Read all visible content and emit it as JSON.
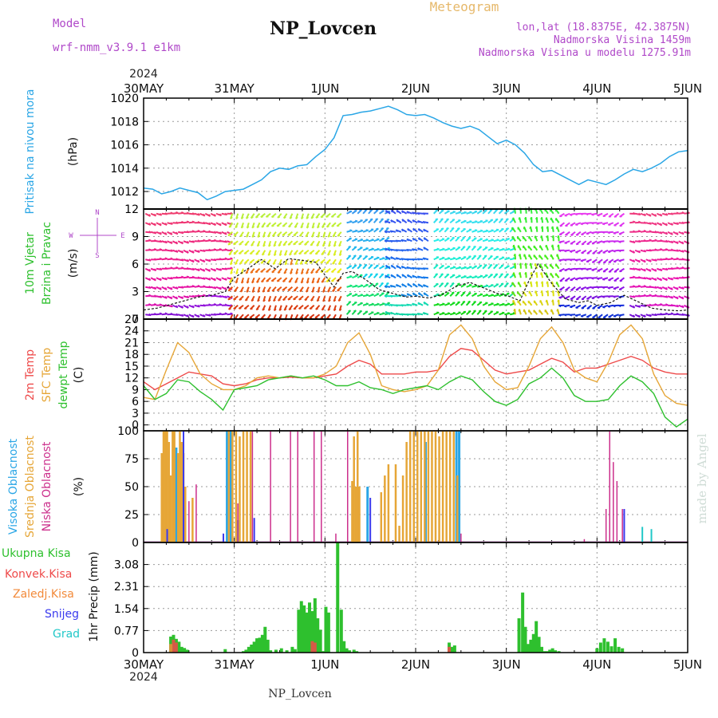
{
  "header": {
    "model_label": "Model",
    "model_value": "wrf-nmm_v3.9.1 e1km",
    "station": "NP_Lovcen",
    "meteogram_label": "Meteogram",
    "lonlat": "lon,lat (18.8375E, 42.3875N)",
    "altitude": "Nadmorska Visina 1459m",
    "model_altitude": "Nadmorska Visina u modelu 1275.91m",
    "watermark": "made by Angel",
    "footer_station": "NP_Lovcen",
    "year_top": "2024",
    "year_bottom": "2024"
  },
  "colors": {
    "pressure": "#2aa6e6",
    "wind_speed": "#1a1a1a",
    "temp2m": "#ee4a4a",
    "sfc_temp": "#e6a637",
    "dewpt": "#2ec02e",
    "cloud_high": "#2aa6e6",
    "cloud_mid": "#e6a637",
    "cloud_low": "#cc2f8c",
    "precip_total": "#2ec02e",
    "precip_conv": "#ee4a4a",
    "precip_frz": "#f28a3a",
    "snow": "#3a3aee",
    "hail": "#22c8c8"
  },
  "chart_data": [
    {
      "type": "line",
      "title": "",
      "ylabel_series": "Pritisak na nivou mora",
      "ylabel_unit": "(hPa)",
      "ylim": [
        1010.5,
        1020
      ],
      "yticks": [
        "1012",
        "1014",
        "1016",
        "1018",
        "1020"
      ],
      "ytick_values": [
        1012,
        1014,
        1016,
        1018,
        1020
      ],
      "x_days": [
        0,
        0.1,
        0.2,
        0.3,
        0.4,
        0.5,
        0.6,
        0.7,
        0.8,
        0.9,
        1.0,
        1.1,
        1.2,
        1.3,
        1.4,
        1.5,
        1.6,
        1.7,
        1.8,
        1.9,
        2.0,
        2.1,
        2.2,
        2.3,
        2.4,
        2.5,
        2.6,
        2.7,
        2.8,
        2.9,
        3.0,
        3.1,
        3.2,
        3.3,
        3.4,
        3.5,
        3.6,
        3.7,
        3.8,
        3.9,
        4.0,
        4.1,
        4.2,
        4.3,
        4.4,
        4.5,
        4.6,
        4.7,
        4.8,
        4.9,
        5.0,
        5.1,
        5.2,
        5.3,
        5.4,
        5.5,
        5.6,
        5.7,
        5.8,
        5.9,
        6.0
      ],
      "series": [
        {
          "values": [
            1012.3,
            1012.2,
            1011.8,
            1012.0,
            1012.3,
            1012.1,
            1011.9,
            1011.3,
            1011.6,
            1012.0,
            1012.1,
            1012.2,
            1012.6,
            1013.0,
            1013.7,
            1014.0,
            1013.9,
            1014.2,
            1014.3,
            1015.0,
            1015.6,
            1016.6,
            1018.5,
            1018.6,
            1018.8,
            1018.9,
            1019.1,
            1019.3,
            1019.0,
            1018.6,
            1018.5,
            1018.6,
            1018.3,
            1017.9,
            1017.6,
            1017.4,
            1017.6,
            1017.3,
            1016.7,
            1016.1,
            1016.4,
            1016.0,
            1015.3,
            1014.3,
            1013.7,
            1013.8,
            1013.4,
            1013.0,
            1012.6,
            1013.0,
            1012.8,
            1012.6,
            1013.0,
            1013.5,
            1013.9,
            1013.7,
            1014.0,
            1014.4,
            1015.0,
            1015.4,
            1015.5
          ]
        }
      ]
    },
    {
      "type": "line",
      "title": "",
      "ylabel_series": [
        "10m Vjetar",
        "Brzina i Pravac"
      ],
      "ylabel_unit": "(m/s)",
      "compass": {
        "n": "N",
        "e": "E",
        "w": "W",
        "s": "S"
      },
      "ylim": [
        0,
        12
      ],
      "yticks": [
        "0",
        "3",
        "6",
        "9",
        "12"
      ],
      "ytick_values": [
        0,
        3,
        6,
        9,
        12
      ],
      "x_days": [
        0,
        0.15,
        0.3,
        0.45,
        0.6,
        0.75,
        0.9,
        1.0,
        1.15,
        1.3,
        1.45,
        1.6,
        1.75,
        1.9,
        2.0,
        2.1,
        2.2,
        2.3,
        2.45,
        2.6,
        2.75,
        2.9,
        3.0,
        3.15,
        3.3,
        3.45,
        3.6,
        3.75,
        3.9,
        4.0,
        4.15,
        4.25,
        4.35,
        4.5,
        4.65,
        4.8,
        4.9,
        5.0,
        5.15,
        5.3,
        5.45,
        5.6,
        5.75,
        5.9,
        6.0
      ],
      "series": [
        {
          "name": "speed",
          "values": [
            1.0,
            1.2,
            1.6,
            2.0,
            2.4,
            2.6,
            3.0,
            4.5,
            5.5,
            6.5,
            5.5,
            6.6,
            6.4,
            6.2,
            4.8,
            3.5,
            5.0,
            5.2,
            4.3,
            3.2,
            2.8,
            2.4,
            2.5,
            2.3,
            2.7,
            3.6,
            4.0,
            3.4,
            2.8,
            2.6,
            2.0,
            4.2,
            6.0,
            3.9,
            2.2,
            1.8,
            2.0,
            1.5,
            1.8,
            2.6,
            1.9,
            1.2,
            1.0,
            0.9,
            1.0
          ]
        }
      ],
      "direction_regimes_hue": [
        {
          "from": 0.0,
          "to": 0.95,
          "hue": 285
        },
        {
          "from": 0.95,
          "to": 2.2,
          "hue": 20
        },
        {
          "from": 2.2,
          "to": 2.7,
          "hue": 150
        },
        {
          "from": 2.7,
          "to": 3.15,
          "hue": 175
        },
        {
          "from": 3.15,
          "to": 4.1,
          "hue": 130
        },
        {
          "from": 4.1,
          "to": 4.6,
          "hue": 65
        },
        {
          "from": 4.6,
          "to": 5.3,
          "hue": 240
        },
        {
          "from": 5.3,
          "to": 6.0,
          "hue": 280
        }
      ]
    },
    {
      "type": "line",
      "title": "",
      "ylabel_series": [
        "2m Temp",
        "SFC Temp",
        "dewpt Temp"
      ],
      "ylabel_unit": "(C)",
      "ylim": [
        -1.5,
        27
      ],
      "yticks": [
        "0",
        "3",
        "6",
        "9",
        "12",
        "15",
        "18",
        "21",
        "24",
        "27"
      ],
      "ytick_values": [
        0,
        3,
        6,
        9,
        12,
        15,
        18,
        21,
        24,
        27
      ],
      "x_days": [
        0,
        0.125,
        0.25,
        0.375,
        0.5,
        0.625,
        0.75,
        0.875,
        1.0,
        1.125,
        1.25,
        1.375,
        1.5,
        1.625,
        1.75,
        1.875,
        2.0,
        2.125,
        2.25,
        2.375,
        2.5,
        2.625,
        2.75,
        2.875,
        3.0,
        3.125,
        3.25,
        3.375,
        3.5,
        3.625,
        3.75,
        3.875,
        4.0,
        4.125,
        4.25,
        4.375,
        4.5,
        4.625,
        4.75,
        4.875,
        5.0,
        5.125,
        5.25,
        5.375,
        5.5,
        5.625,
        5.75,
        5.875,
        6.0
      ],
      "series": [
        {
          "name": "2m Temp",
          "values": [
            11.0,
            9.0,
            10.5,
            12.0,
            13.5,
            13.0,
            12.5,
            10.5,
            10.0,
            10.5,
            11.5,
            12.0,
            12.0,
            12.2,
            12.0,
            12.0,
            12.5,
            13.0,
            15.0,
            16.5,
            15.5,
            13.0,
            13.0,
            13.0,
            13.5,
            13.5,
            14.0,
            17.5,
            19.5,
            19.0,
            16.5,
            14.0,
            13.0,
            13.5,
            14.0,
            15.5,
            17.0,
            16.0,
            13.5,
            14.5,
            14.5,
            15.5,
            16.5,
            17.5,
            16.5,
            14.5,
            13.5,
            13.0,
            13.0
          ]
        },
        {
          "name": "SFC Temp",
          "values": [
            7.0,
            6.5,
            14.0,
            21.0,
            18.5,
            13.0,
            10.5,
            9.0,
            9.0,
            10.0,
            12.0,
            12.5,
            12.0,
            12.5,
            12.0,
            12.0,
            13.0,
            15.0,
            21.0,
            23.5,
            18.0,
            10.0,
            9.0,
            8.5,
            9.0,
            10.0,
            14.0,
            23.0,
            25.5,
            22.0,
            15.0,
            11.0,
            9.0,
            9.5,
            15.0,
            22.0,
            25.0,
            21.0,
            14.0,
            12.0,
            11.0,
            16.0,
            23.0,
            25.5,
            22.0,
            13.0,
            7.5,
            5.5,
            5.0
          ]
        },
        {
          "name": "dewpt Temp",
          "values": [
            10.0,
            6.5,
            8.0,
            11.5,
            11.0,
            8.5,
            6.5,
            3.8,
            9.0,
            9.5,
            10.0,
            11.5,
            12.0,
            12.5,
            12.0,
            12.5,
            11.5,
            10.0,
            10.0,
            11.0,
            9.5,
            9.0,
            8.0,
            9.0,
            9.5,
            10.0,
            9.0,
            11.0,
            12.5,
            11.5,
            8.5,
            6.0,
            5.0,
            6.5,
            10.5,
            12.0,
            14.5,
            12.0,
            7.5,
            6.0,
            6.0,
            6.5,
            10.0,
            12.5,
            11.0,
            8.0,
            2.0,
            -0.5,
            1.5
          ]
        }
      ]
    },
    {
      "type": "bar",
      "title": "",
      "ylabel_series": [
        "Visoka Oblacnost",
        "Srednja Oblacnost",
        "Niska Oblacnost"
      ],
      "ylabel_unit": "(%)",
      "ylim": [
        0,
        100
      ],
      "yticks": [
        "0",
        "25",
        "50",
        "75",
        "100"
      ],
      "ytick_values": [
        0,
        25,
        50,
        75,
        100
      ],
      "series": [
        {
          "name": "Visoka Oblacnost",
          "x": [
            0.27,
            0.36,
            0.92,
            0.96,
            1.04,
            2.47,
            3.11,
            3.45,
            3.48
          ],
          "values": [
            10,
            85,
            100,
            100,
            20,
            50,
            90,
            100,
            100
          ]
        },
        {
          "name": "Srednja Oblacnost",
          "x": [
            0.2,
            0.22,
            0.24,
            0.26,
            0.28,
            0.3,
            0.32,
            0.34,
            0.38,
            0.4,
            0.42,
            0.44,
            0.46,
            0.54,
            0.94,
            0.98,
            1.02,
            1.06,
            1.1,
            1.14,
            1.18,
            2.3,
            2.32,
            2.34,
            2.36,
            2.38,
            2.62,
            2.66,
            2.7,
            2.78,
            2.82,
            2.86,
            2.9,
            2.94,
            2.98,
            3.02,
            3.06,
            3.1,
            3.14,
            3.18,
            3.22,
            3.26,
            3.3,
            3.34,
            3.38,
            3.42,
            3.46
          ],
          "values": [
            80,
            100,
            100,
            100,
            90,
            60,
            100,
            100,
            80,
            100,
            90,
            80,
            50,
            40,
            100,
            100,
            100,
            95,
            100,
            100,
            100,
            55,
            95,
            50,
            100,
            50,
            45,
            60,
            70,
            70,
            15,
            60,
            90,
            100,
            100,
            100,
            100,
            100,
            100,
            100,
            100,
            95,
            100,
            100,
            100,
            100,
            60
          ]
        },
        {
          "name": "Niska Oblacnost",
          "x": [
            0.5,
            0.58,
            0.88,
            1.04,
            1.2,
            1.4,
            1.62,
            1.7,
            1.88,
            1.96,
            2.12,
            2.25,
            3.5,
            4.86,
            5.1,
            5.14,
            5.18,
            5.22,
            5.28
          ],
          "values": [
            37,
            52,
            5,
            35,
            100,
            100,
            100,
            100,
            100,
            100,
            8,
            100,
            8,
            3,
            30,
            100,
            72,
            55,
            30
          ]
        },
        {
          "name": "Snijeg",
          "x": [
            0.26,
            0.44,
            0.88,
            1.22,
            2.5,
            5.3
          ],
          "values": [
            12,
            100,
            8,
            22,
            40,
            30
          ]
        },
        {
          "name": "Grad",
          "x": [
            5.5,
            5.6
          ],
          "values": [
            14,
            12
          ]
        }
      ]
    },
    {
      "type": "bar",
      "title": "",
      "ylabel_series": [
        "Ukupna Kisa",
        "Konvek.Kisa",
        "Zaledj.Kisa",
        "Snijeg",
        "Grad"
      ],
      "ylabel_unit": "1hr Precip (mm)",
      "ylim": [
        0,
        3.85
      ],
      "yticks": [
        "0",
        "0.77",
        "1.54",
        "2.31",
        "3.08"
      ],
      "ytick_values": [
        0,
        0.77,
        1.54,
        2.31,
        3.08
      ],
      "series": [
        {
          "name": "Ukupna Kisa",
          "x": [
            0.3,
            0.33,
            0.36,
            0.39,
            0.42,
            0.45,
            0.48,
            0.9,
            1.1,
            1.13,
            1.16,
            1.19,
            1.22,
            1.25,
            1.28,
            1.31,
            1.34,
            1.37,
            1.4,
            1.46,
            1.52,
            1.58,
            1.64,
            1.67,
            1.71,
            1.74,
            1.77,
            1.8,
            1.83,
            1.86,
            1.89,
            1.92,
            1.95,
            1.98,
            2.01,
            2.04,
            2.14,
            2.18,
            2.21,
            2.24,
            2.27,
            2.32,
            2.35,
            3.37,
            3.4,
            3.43,
            4.14,
            4.18,
            4.21,
            4.24,
            4.27,
            4.3,
            4.33,
            4.36,
            4.39,
            4.42,
            4.45,
            4.48,
            4.51,
            4.54,
            4.58,
            5.0,
            5.04,
            5.08,
            5.12,
            5.16,
            5.2,
            5.24,
            5.28
          ],
          "values": [
            0.56,
            0.62,
            0.48,
            0.38,
            0.2,
            0.16,
            0.1,
            0.12,
            0.05,
            0.1,
            0.2,
            0.28,
            0.38,
            0.5,
            0.52,
            0.62,
            0.9,
            0.45,
            0.08,
            0.1,
            0.15,
            0.08,
            0.2,
            0.12,
            1.5,
            1.8,
            1.65,
            1.4,
            1.75,
            1.45,
            1.9,
            1.2,
            0.8,
            0.05,
            1.6,
            1.4,
            3.85,
            1.5,
            0.4,
            0.15,
            0.08,
            0.1,
            0.05,
            0.35,
            0.2,
            0.25,
            1.2,
            2.1,
            0.9,
            0.3,
            0.45,
            0.65,
            1.1,
            0.55,
            0.2,
            0.05,
            0.05,
            0.1,
            0.15,
            0.08,
            0.05,
            0.15,
            0.35,
            0.5,
            0.38,
            0.22,
            0.5,
            0.2,
            0.15
          ]
        },
        {
          "name": "Konvek.Kisa",
          "x": [
            0.33,
            0.36,
            1.86,
            1.89,
            3.37
          ],
          "values": [
            0.45,
            0.35,
            0.4,
            0.35,
            0.2
          ]
        },
        {
          "name": "Zaledj.Kisa",
          "x": [
            0.3
          ],
          "values": [
            0.3
          ]
        }
      ]
    }
  ],
  "x_axis": {
    "ticks": [
      "30MAY",
      "31MAY",
      "1JUN",
      "2JUN",
      "3JUN",
      "4JUN",
      "5JUN"
    ],
    "tick_days": [
      0,
      1,
      2,
      3,
      4,
      5,
      6
    ]
  }
}
